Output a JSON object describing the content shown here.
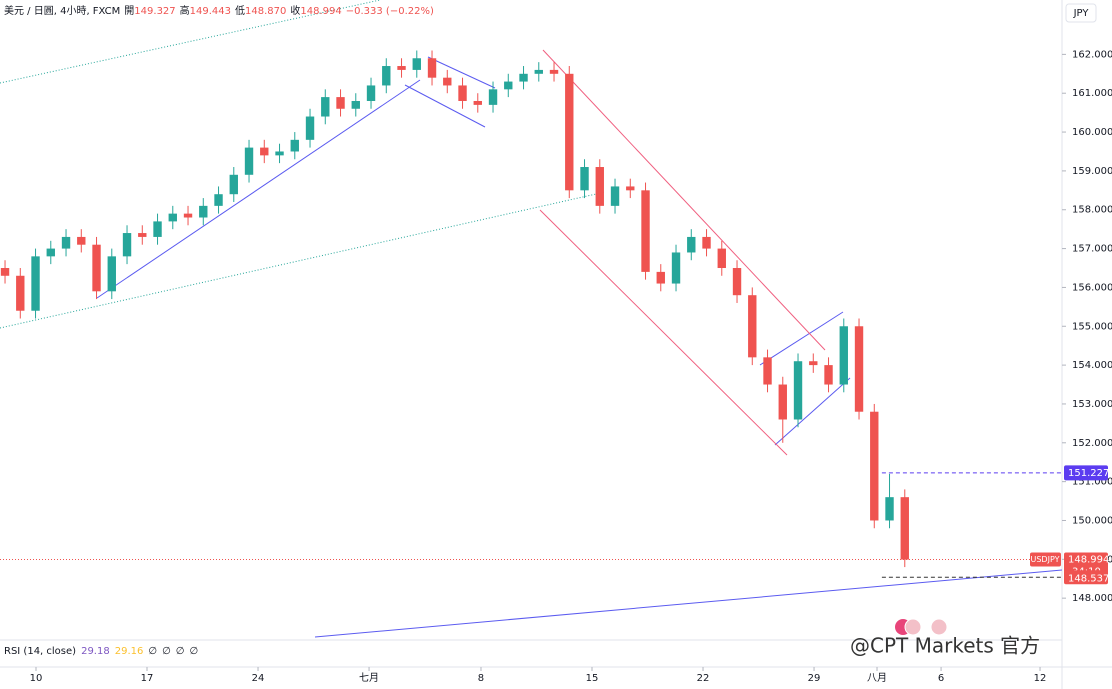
{
  "chart_data": {
    "type": "candlestick",
    "header": {
      "symbol": "美元 / 日圓, 4小時, FXCM",
      "ohlc": [
        {
          "label": "開",
          "value": "149.327"
        },
        {
          "label": "高",
          "value": "149.443"
        },
        {
          "label": "低",
          "value": "148.870"
        },
        {
          "label": "收",
          "value": "148.994"
        }
      ],
      "change": "−0.333 (−0.22%)"
    },
    "currency": "JPY",
    "indicator": {
      "name": "RSI (14, close)",
      "values": [
        "29.18",
        "29.16",
        "∅",
        "∅",
        "∅",
        "∅"
      ],
      "colors": [
        "#7e57c2",
        "#fbc02d",
        "#131722",
        "#131722",
        "#131722",
        "#131722"
      ]
    },
    "watermark": "@CPT Markets 官方",
    "symbol_tag": "USDJPY",
    "countdown": "34:10",
    "up_color": "#26a69a",
    "down_color": "#ef5350",
    "x": [
      0,
      1,
      2,
      3,
      4,
      5,
      6,
      7,
      8,
      9,
      10,
      11,
      12,
      13,
      14,
      15,
      16,
      17,
      18,
      19,
      20,
      21,
      22,
      23,
      24,
      25,
      26,
      27,
      28,
      29,
      30,
      31,
      32,
      33,
      34,
      35,
      36,
      37,
      38,
      39,
      40,
      41,
      42,
      43,
      44,
      45,
      46,
      47,
      48,
      49,
      50,
      51,
      52,
      53,
      54,
      55,
      56,
      57,
      58,
      59
    ],
    "open": [
      156.5,
      156.3,
      155.4,
      156.8,
      157.0,
      157.3,
      157.1,
      155.9,
      156.8,
      157.4,
      157.3,
      157.7,
      157.9,
      157.8,
      158.1,
      158.4,
      158.9,
      159.6,
      159.4,
      159.5,
      159.8,
      160.4,
      160.9,
      160.6,
      160.8,
      161.2,
      161.7,
      161.6,
      161.9,
      161.4,
      161.2,
      160.8,
      160.7,
      161.1,
      161.3,
      161.5,
      161.6,
      161.5,
      158.5,
      159.1,
      158.1,
      158.6,
      158.5,
      156.4,
      156.1,
      156.9,
      157.3,
      157.0,
      156.5,
      155.8,
      154.2,
      153.5,
      152.6,
      154.1,
      154.0,
      153.5,
      155.0,
      152.8,
      150.0,
      150.6
    ],
    "high": [
      156.7,
      156.5,
      157.0,
      157.2,
      157.5,
      157.5,
      157.3,
      157.0,
      157.6,
      157.6,
      157.9,
      158.1,
      158.1,
      158.3,
      158.6,
      159.1,
      159.8,
      159.8,
      159.7,
      160.0,
      160.6,
      161.1,
      161.1,
      161.0,
      161.4,
      161.9,
      161.9,
      162.1,
      162.1,
      161.6,
      161.4,
      161.0,
      161.3,
      161.5,
      161.7,
      161.8,
      161.8,
      161.7,
      159.3,
      159.3,
      158.8,
      158.8,
      158.7,
      156.6,
      157.1,
      157.5,
      157.5,
      157.2,
      156.7,
      156.0,
      154.4,
      153.7,
      154.3,
      154.3,
      154.2,
      155.2,
      155.2,
      153.0,
      151.2,
      150.8
    ],
    "low": [
      156.1,
      155.2,
      155.2,
      156.6,
      156.8,
      156.9,
      155.7,
      155.7,
      156.6,
      157.1,
      157.1,
      157.5,
      157.6,
      157.6,
      157.9,
      158.2,
      158.7,
      159.2,
      159.2,
      159.3,
      159.6,
      160.2,
      160.4,
      160.4,
      160.6,
      161.0,
      161.4,
      161.4,
      161.2,
      161.0,
      160.6,
      160.5,
      160.5,
      160.9,
      161.1,
      161.3,
      161.3,
      158.3,
      158.3,
      157.9,
      157.9,
      158.3,
      156.2,
      155.9,
      155.9,
      156.7,
      156.8,
      156.3,
      155.6,
      154.0,
      153.3,
      152.0,
      152.4,
      153.8,
      153.3,
      153.3,
      152.6,
      149.8,
      149.8,
      148.8
    ],
    "close": [
      156.3,
      155.4,
      156.8,
      157.0,
      157.3,
      157.1,
      155.9,
      156.8,
      157.4,
      157.3,
      157.7,
      157.9,
      157.8,
      158.1,
      158.4,
      158.9,
      159.6,
      159.4,
      159.5,
      159.8,
      160.4,
      160.9,
      160.6,
      160.8,
      161.2,
      161.7,
      161.6,
      161.9,
      161.4,
      161.2,
      160.8,
      160.7,
      161.1,
      161.3,
      161.5,
      161.6,
      161.5,
      158.5,
      159.1,
      158.1,
      158.6,
      158.5,
      156.4,
      156.1,
      156.9,
      157.3,
      157.0,
      156.5,
      155.8,
      154.2,
      153.5,
      152.6,
      154.1,
      154.0,
      153.5,
      155.0,
      152.8,
      150.0,
      150.6,
      148.994
    ],
    "xlim": [
      -0.33,
      69.31
    ],
    "xticks": [
      {
        "value": 2.03,
        "label": "10"
      },
      {
        "value": 9.31,
        "label": "17"
      },
      {
        "value": 16.59,
        "label": "24"
      },
      {
        "value": 23.87,
        "label": "七月"
      },
      {
        "value": 31.21,
        "label": "8"
      },
      {
        "value": 38.49,
        "label": "15"
      },
      {
        "value": 45.77,
        "label": "22"
      },
      {
        "value": 53.05,
        "label": "29"
      },
      {
        "value": 57.18,
        "label": "八月"
      },
      {
        "value": 61.38,
        "label": "6"
      },
      {
        "value": 67.87,
        "label": "12"
      }
    ],
    "ylim": [
      147.0,
      163.4
    ],
    "yticks": [
      {
        "value": 148,
        "label": "148.000"
      },
      {
        "value": 149,
        "label": "149.000"
      },
      {
        "value": 150,
        "label": "150.000"
      },
      {
        "value": 151,
        "label": "151.000"
      },
      {
        "value": 152,
        "label": "152.000"
      },
      {
        "value": 153,
        "label": "153.000"
      },
      {
        "value": 154,
        "label": "154.000"
      },
      {
        "value": 155,
        "label": "155.000"
      },
      {
        "value": 156,
        "label": "156.000"
      },
      {
        "value": 157,
        "label": "157.000"
      },
      {
        "value": 158,
        "label": "158.000"
      },
      {
        "value": 159,
        "label": "159.000"
      },
      {
        "value": 160,
        "label": "160.000"
      },
      {
        "value": 161,
        "label": "161.000"
      },
      {
        "value": 162,
        "label": "162.000"
      }
    ],
    "price_lines": [
      {
        "value": 151.227,
        "color": "#5b3cf0"
      },
      {
        "value": 148.994,
        "color": "#ef5350"
      },
      {
        "value": 148.537,
        "color": "#ef5350"
      }
    ]
  }
}
